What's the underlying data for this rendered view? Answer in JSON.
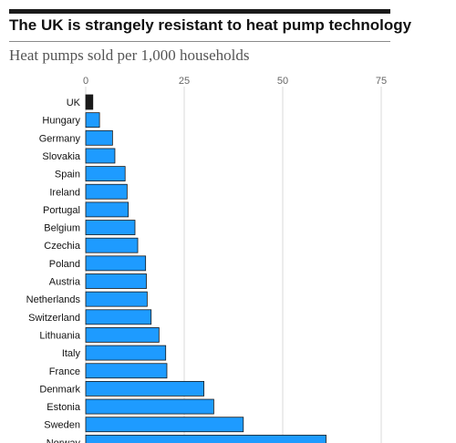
{
  "title": "The UK is strangely resistant to heat pump technology",
  "subtitle": "Heat pumps sold per 1,000 households",
  "colors": {
    "bar": "#1e9bff",
    "highlight": "#1a1a1a",
    "grid": "#d9d9d9",
    "bar_border": "#1a1a1a"
  },
  "chart_data": {
    "type": "bar",
    "orientation": "horizontal",
    "categories": [
      "UK",
      "Hungary",
      "Germany",
      "Slovakia",
      "Spain",
      "Ireland",
      "Portugal",
      "Belgium",
      "Czechia",
      "Poland",
      "Austria",
      "Netherlands",
      "Switzerland",
      "Lithuania",
      "Italy",
      "France",
      "Denmark",
      "Estonia",
      "Sweden",
      "Norway"
    ],
    "values": [
      1.8,
      3.5,
      6.8,
      7.4,
      10,
      10.5,
      10.8,
      12.5,
      13.2,
      15.2,
      15.4,
      15.6,
      16.6,
      18.6,
      20.3,
      20.6,
      30,
      32.5,
      40,
      61
    ],
    "highlight": "UK",
    "xlim": [
      0,
      75
    ],
    "xticks": [
      0,
      25,
      50,
      75
    ],
    "grid": true,
    "xlabel": "",
    "ylabel": ""
  }
}
